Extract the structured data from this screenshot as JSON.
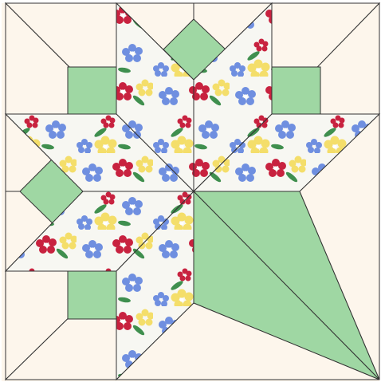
{
  "block": {
    "colors": {
      "background": "#fdf6ec",
      "seam": "#333333",
      "green": "#9fd7a3",
      "floral_base": "#f7f7f2",
      "flower_blue": "#6f8fe0",
      "flower_red": "#c8223f",
      "flower_yellow": "#f4de6a",
      "leaf": "#3f8f4e"
    },
    "pattern": "floral-print",
    "pieces": {
      "background_patches": 13,
      "green_squares": 5,
      "floral_diamonds": 8,
      "green_leaf_triangles": 2
    }
  }
}
